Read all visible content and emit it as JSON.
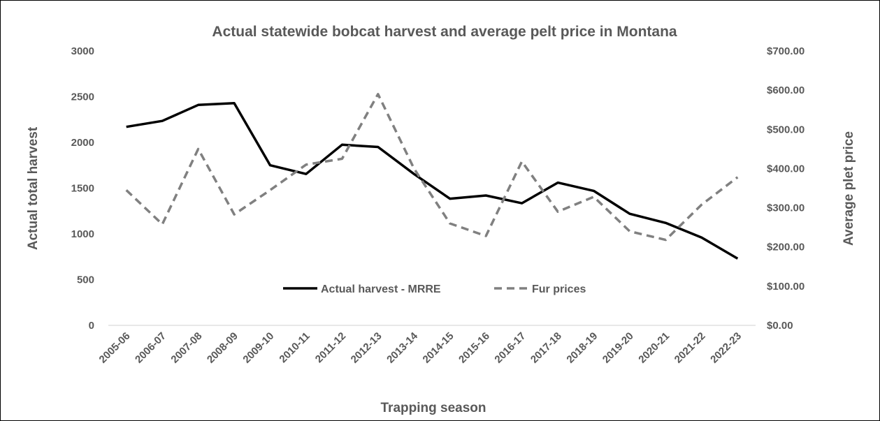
{
  "chart_data": {
    "type": "line",
    "title": "Actual statewide bobcat harvest and average pelt price in Montana",
    "xlabel": "Trapping season",
    "ylabel": "Actual total harvest",
    "y2label": "Average plet price",
    "categories": [
      "2005-06",
      "2006-07",
      "2007-08",
      "2008-09",
      "2009-10",
      "2010-11",
      "2011-12",
      "2012-13",
      "2013-14",
      "2014-15",
      "2015-16",
      "2016-17",
      "2017-18",
      "2018-19",
      "2019-20",
      "2020-21",
      "2021-22",
      "2022-23"
    ],
    "ylim": [
      0,
      3000
    ],
    "y_ticks": [
      0,
      500,
      1000,
      1500,
      2000,
      2500,
      3000
    ],
    "y_tick_labels": [
      "0",
      "500",
      "1000",
      "1500",
      "2000",
      "2500",
      "3000"
    ],
    "y2lim": [
      0,
      700
    ],
    "y2_ticks": [
      0,
      100,
      200,
      300,
      400,
      500,
      600,
      700
    ],
    "y2_tick_labels": [
      "$0.00",
      "$100.00",
      "$200.00",
      "$300.00",
      "$400.00",
      "$500.00",
      "$600.00",
      "$700.00"
    ],
    "grid": false,
    "legend_position": "bottom-center-inside",
    "series": [
      {
        "name": "Actual harvest - MRRE",
        "axis": "left",
        "style": "solid",
        "color": "#000000",
        "values": [
          2170,
          2235,
          2410,
          2430,
          1750,
          1655,
          1975,
          1950,
          1655,
          1385,
          1420,
          1335,
          1560,
          1470,
          1220,
          1120,
          960,
          730
        ]
      },
      {
        "name": "Fur prices",
        "axis": "right",
        "style": "dashed",
        "color": "#808080",
        "values": [
          345,
          258,
          450,
          283,
          345,
          410,
          425,
          590,
          400,
          260,
          228,
          418,
          290,
          328,
          240,
          218,
          308,
          378
        ]
      }
    ]
  }
}
